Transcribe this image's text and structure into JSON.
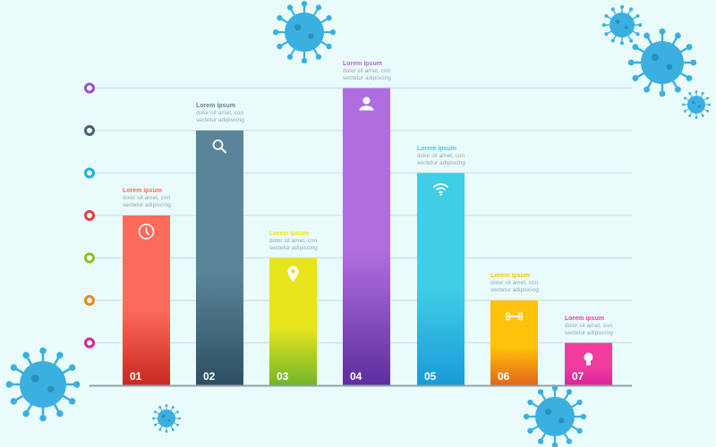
{
  "chart_data": {
    "type": "bar",
    "title": "",
    "xlabel": "",
    "ylabel": "",
    "ylim": [
      0,
      7
    ],
    "grid": true,
    "categories": [
      "01",
      "02",
      "03",
      "04",
      "05",
      "06",
      "07"
    ],
    "values": [
      4,
      6,
      3,
      7,
      5,
      2,
      1
    ],
    "icons": [
      "clock-icon",
      "search-icon",
      "location-pin-icon",
      "user-icon",
      "wifi-icon",
      "bone-icon",
      "lightbulb-icon"
    ],
    "colors_top": [
      "#ff6b5b",
      "#5a8599",
      "#e8e41c",
      "#b06de0",
      "#40cde6",
      "#ffc20a",
      "#f23d9c"
    ],
    "colors_bottom": [
      "#c42a20",
      "#2e4f62",
      "#72b52c",
      "#5d2f9e",
      "#1a9ad6",
      "#e2661a",
      "#d8249b"
    ],
    "marker_colors": [
      "#d8249b",
      "#e8881a",
      "#8cc21e",
      "#e04040",
      "#1fb0dc",
      "#3d6478",
      "#9a4fd0"
    ],
    "annotations": [
      {
        "title": "Lorem ipsum",
        "line1": "dolor sit amet, con",
        "line2": "sectetur adipiscing"
      },
      {
        "title": "Lorem ipsum",
        "line1": "dolor sit amet, con",
        "line2": "sectetur adipiscing"
      },
      {
        "title": "Lorem ipsum",
        "line1": "dolor sit amet, con",
        "line2": "sectetur adipiscing"
      },
      {
        "title": "Lorem ipsum",
        "line1": "dolor sit amet, con",
        "line2": "sectetur adipiscing"
      },
      {
        "title": "Lorem ipsum",
        "line1": "dolor sit amet, con",
        "line2": "sectetur adipiscing"
      },
      {
        "title": "Lorem ipsum",
        "line1": "dolor sit amet, con",
        "line2": "sectetur adipiscing"
      },
      {
        "title": "Lorem ipsum",
        "line1": "dolor sit amet, con",
        "line2": "sectetur adipiscing"
      }
    ]
  },
  "decor": {
    "virus_color": "#3bb0e0"
  }
}
